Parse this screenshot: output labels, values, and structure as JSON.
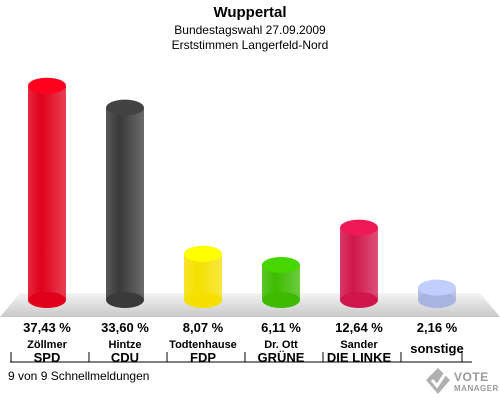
{
  "header": {
    "title": "Wuppertal",
    "subtitle1": "Bundestagswahl 27.09.2009",
    "subtitle2": "Erststimmen Langerfeld-Nord"
  },
  "chart_data": {
    "type": "bar",
    "title": "Wuppertal",
    "subtitle": "Bundestagswahl 27.09.2009 — Erststimmen Langerfeld-Nord",
    "categories": [
      "SPD",
      "CDU",
      "FDP",
      "GRÜNE",
      "DIE LINKE",
      "sonstige"
    ],
    "candidates": [
      "Zöllmer",
      "Hintze",
      "Todtenhause",
      "Dr. Ott",
      "Sander",
      ""
    ],
    "values": [
      37.43,
      33.6,
      8.07,
      6.11,
      12.64,
      2.16
    ],
    "value_labels": [
      "37,43 %",
      "33,60 %",
      "8,07 %",
      "6,11 %",
      "12,64 %",
      "2,16 %"
    ],
    "colors": [
      "#e0001a",
      "#3a3a3a",
      "#f5e000",
      "#3dbb00",
      "#d0164a",
      "#a8b4e0"
    ],
    "ylim": [
      0,
      40
    ],
    "grid": false
  },
  "footer": {
    "text": "9 von 9 Schnellmeldungen"
  },
  "logo": {
    "line1": "VOTE",
    "line2": "MANAGER",
    "icon": "checkmark-ballot-icon"
  }
}
